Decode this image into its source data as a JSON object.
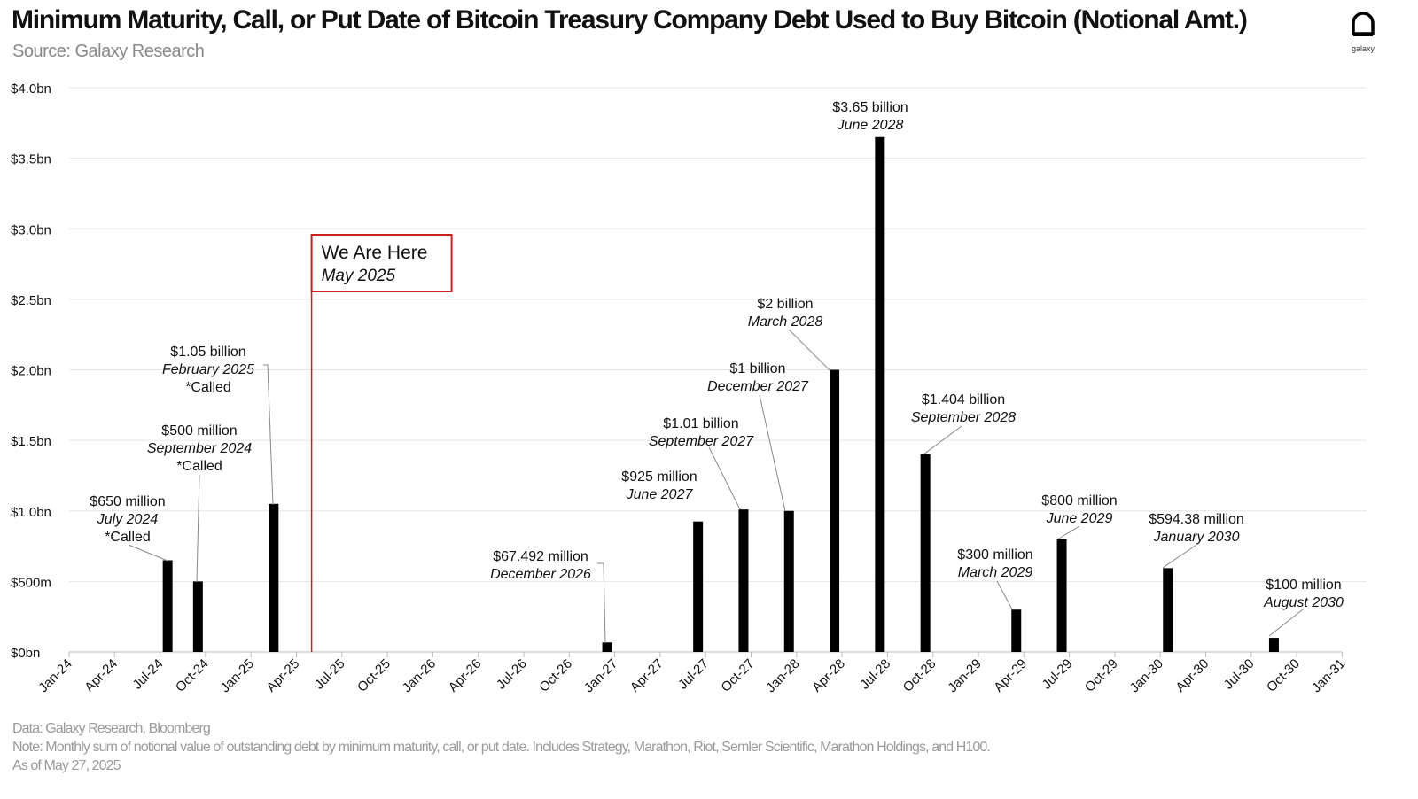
{
  "header": {
    "title": "Minimum Maturity, Call, or Put Date of Bitcoin Treasury Company Debt Used to Buy Bitcoin (Notional Amt.)",
    "subtitle": "Source: Galaxy Research",
    "logo_text": "galaxy"
  },
  "footer": {
    "data_source": "Data: Galaxy Research, Bloomberg",
    "note": "Note: Monthly sum of  notional value of outstanding debt by minimum maturity, call, or put date. Includes Strategy, Marathon, Riot, Semler Scientific, Marathon Holdings, and H100.",
    "as_of": "As of May 27, 2025"
  },
  "chart_data": {
    "type": "bar",
    "title": "Minimum Maturity, Call, or Put Date of Bitcoin Treasury Company Debt Used to Buy Bitcoin (Notional Amt.)",
    "xlabel": "",
    "ylabel": "",
    "ylim": [
      0,
      4.0
    ],
    "y_unit": "USD billions",
    "grid": true,
    "y_ticks": [
      "$0bn",
      "$500m",
      "$1.0bn",
      "$1.5bn",
      "$2.0bn",
      "$2.5bn",
      "$3.0bn",
      "$3.5bn",
      "$4.0bn"
    ],
    "x_range": [
      "2024-01",
      "2031-01"
    ],
    "x_ticks": [
      "Jan-24",
      "Apr-24",
      "Jul-24",
      "Oct-24",
      "Jan-25",
      "Apr-25",
      "Jul-25",
      "Oct-25",
      "Jan-26",
      "Apr-26",
      "Jul-26",
      "Oct-26",
      "Jan-27",
      "Apr-27",
      "Jul-27",
      "Oct-27",
      "Jan-28",
      "Apr-28",
      "Jul-28",
      "Oct-28",
      "Jan-29",
      "Apr-29",
      "Jul-29",
      "Oct-29",
      "Jan-30",
      "Apr-30",
      "Jul-30",
      "Oct-30",
      "Jan-31"
    ],
    "bars": [
      {
        "month": "2024-07",
        "value": 0.65,
        "label": [
          "$650 million",
          "July 2024",
          "*Called"
        ]
      },
      {
        "month": "2024-09",
        "value": 0.5,
        "label": [
          "$500 million",
          "September 2024",
          "*Called"
        ]
      },
      {
        "month": "2025-02",
        "value": 1.05,
        "label": [
          "$1.05 billion",
          "February 2025",
          "*Called"
        ]
      },
      {
        "month": "2026-12",
        "value": 0.067492,
        "label": [
          "$67.492 million",
          "December 2026"
        ]
      },
      {
        "month": "2027-06",
        "value": 0.925,
        "label": [
          "$925 million",
          "June 2027"
        ]
      },
      {
        "month": "2027-09",
        "value": 1.01,
        "label": [
          "$1.01 billion",
          "September 2027"
        ]
      },
      {
        "month": "2027-12",
        "value": 1.0,
        "label": [
          "$1 billion",
          "December 2027"
        ]
      },
      {
        "month": "2028-03",
        "value": 2.0,
        "label": [
          "$2 billion",
          "March 2028"
        ]
      },
      {
        "month": "2028-06",
        "value": 3.65,
        "label": [
          "$3.65 billion",
          "June 2028"
        ]
      },
      {
        "month": "2028-09",
        "value": 1.404,
        "label": [
          "$1.404 billion",
          "September 2028"
        ]
      },
      {
        "month": "2029-03",
        "value": 0.3,
        "label": [
          "$300 million",
          "March 2029"
        ]
      },
      {
        "month": "2029-06",
        "value": 0.8,
        "label": [
          "$800 million",
          "June 2029"
        ]
      },
      {
        "month": "2030-01",
        "value": 0.59438,
        "label": [
          "$594.38 million",
          "January 2030"
        ]
      },
      {
        "month": "2030-08",
        "value": 0.1,
        "label": [
          "$100 million",
          "August 2030"
        ]
      }
    ],
    "marker": {
      "month": "2025-05",
      "label": [
        "We Are Here",
        "May 2025"
      ],
      "color": "#c8201e"
    },
    "bar_color": "#000000"
  }
}
